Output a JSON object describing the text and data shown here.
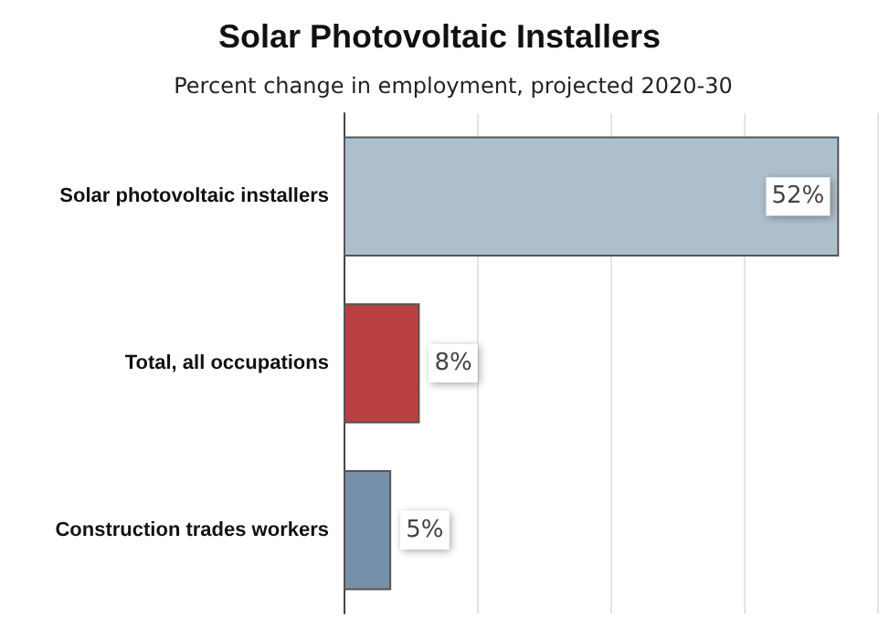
{
  "chart_data": {
    "type": "bar",
    "orientation": "horizontal",
    "title": "Solar Photovoltaic Installers",
    "subtitle": "Percent change in employment, projected 2020-30",
    "categories": [
      "Solar photovoltaic installers",
      "Total, all occupations",
      "Construction trades workers"
    ],
    "values": [
      52,
      8,
      5
    ],
    "colors": [
      "#aebfcc",
      "#b94141",
      "#7590a8"
    ],
    "value_labels": [
      "52%",
      "8%",
      "5%"
    ],
    "xlim": [
      0,
      56
    ],
    "xticks": [
      {
        "value": 0,
        "label": null
      },
      {
        "value": 14,
        "label": null
      },
      {
        "value": 28,
        "label": null
      },
      {
        "value": 42,
        "label": null
      },
      {
        "value": 56,
        "label": null
      }
    ],
    "tick_labels": "y",
    "grid": "x"
  }
}
